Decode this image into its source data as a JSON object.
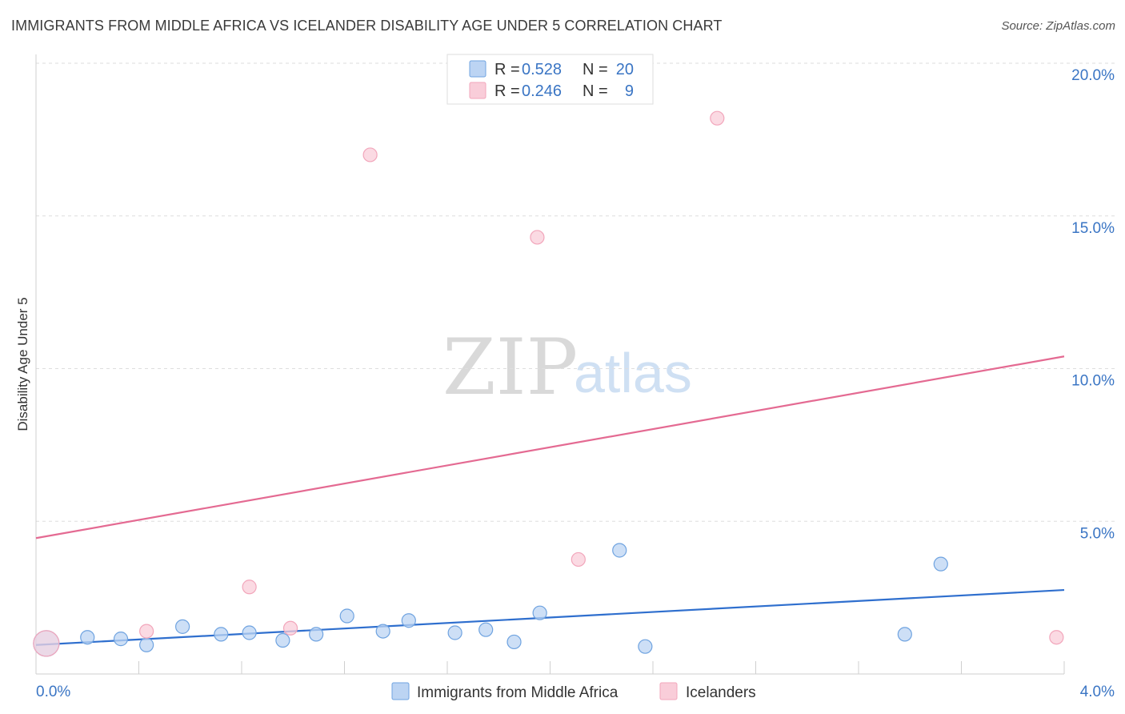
{
  "header": {
    "title": "IMMIGRANTS FROM MIDDLE AFRICA VS ICELANDER DISABILITY AGE UNDER 5 CORRELATION CHART",
    "source": "Source: ZipAtlas.com"
  },
  "watermark": {
    "zip": "ZIP",
    "atlas": "atlas"
  },
  "legend": {
    "rows": [
      {
        "r_label": "R =",
        "r_value": "0.528",
        "n_label": "N =",
        "n_value": "20"
      },
      {
        "r_label": "R =",
        "r_value": "0.246",
        "n_label": "N =",
        "n_value": "9"
      }
    ]
  },
  "bottom_legend": [
    "Immigrants from Middle Africa",
    "Icelanders"
  ],
  "chart_data": {
    "type": "scatter",
    "title": "IMMIGRANTS FROM MIDDLE AFRICA VS ICELANDER DISABILITY AGE UNDER 5 CORRELATION CHART",
    "xlabel": "",
    "ylabel": "Disability Age Under 5",
    "xlim": [
      0,
      4.0
    ],
    "ylim": [
      0,
      20.5
    ],
    "x_tick_labels": [
      "0.0%",
      "4.0%"
    ],
    "y_ticks": [
      5,
      10,
      15,
      20
    ],
    "y_tick_labels": [
      "5.0%",
      "10.0%",
      "15.0%",
      "20.0%"
    ],
    "series": [
      {
        "name": "Immigrants from Middle Africa",
        "color": "#6fa3e0",
        "fill": "#bcd4f3",
        "line_color": "#2f6fce",
        "trend": {
          "x": [
            0,
            4.0
          ],
          "y": [
            0.95,
            2.75
          ]
        },
        "points": [
          {
            "x": 0.04,
            "y": 1.0,
            "big": true
          },
          {
            "x": 0.2,
            "y": 1.2
          },
          {
            "x": 0.33,
            "y": 1.15
          },
          {
            "x": 0.43,
            "y": 0.95
          },
          {
            "x": 0.57,
            "y": 1.55
          },
          {
            "x": 0.72,
            "y": 1.3
          },
          {
            "x": 0.83,
            "y": 1.35
          },
          {
            "x": 0.96,
            "y": 1.1
          },
          {
            "x": 1.09,
            "y": 1.3
          },
          {
            "x": 1.21,
            "y": 1.9
          },
          {
            "x": 1.35,
            "y": 1.4
          },
          {
            "x": 1.45,
            "y": 1.75
          },
          {
            "x": 1.63,
            "y": 1.35
          },
          {
            "x": 1.75,
            "y": 1.45
          },
          {
            "x": 1.86,
            "y": 1.05
          },
          {
            "x": 1.96,
            "y": 2.0
          },
          {
            "x": 2.27,
            "y": 4.05
          },
          {
            "x": 2.37,
            "y": 0.9
          },
          {
            "x": 3.38,
            "y": 1.3
          },
          {
            "x": 3.52,
            "y": 3.6
          }
        ]
      },
      {
        "name": "Icelanders",
        "color": "#f2a6bb",
        "fill": "#f9cdd9",
        "line_color": "#e46a92",
        "trend": {
          "x": [
            0,
            4.0
          ],
          "y": [
            4.45,
            10.4
          ]
        },
        "points": [
          {
            "x": 0.04,
            "y": 1.0,
            "big": true
          },
          {
            "x": 0.43,
            "y": 1.4
          },
          {
            "x": 0.83,
            "y": 2.85
          },
          {
            "x": 0.99,
            "y": 1.5
          },
          {
            "x": 1.3,
            "y": 17.0
          },
          {
            "x": 1.95,
            "y": 14.3
          },
          {
            "x": 2.11,
            "y": 3.75
          },
          {
            "x": 2.65,
            "y": 18.2
          },
          {
            "x": 3.97,
            "y": 1.2
          }
        ]
      }
    ]
  }
}
